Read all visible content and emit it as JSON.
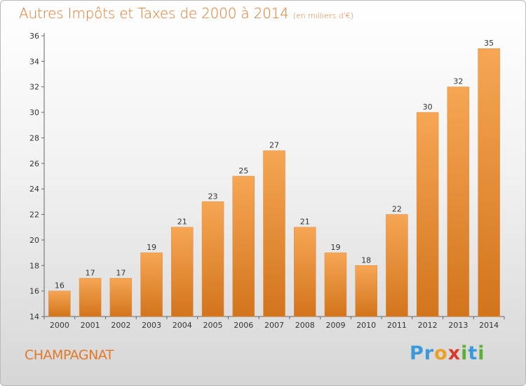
{
  "chart_data": {
    "type": "bar",
    "title": "Autres Impôts et Taxes de 2000 à 2014",
    "unit_note": "(en milliers d'€)",
    "categories": [
      "2000",
      "2001",
      "2002",
      "2003",
      "2004",
      "2005",
      "2006",
      "2007",
      "2008",
      "2009",
      "2010",
      "2011",
      "2012",
      "2013",
      "2014"
    ],
    "values": [
      16,
      17,
      17,
      19,
      21,
      23,
      25,
      27,
      21,
      19,
      18,
      22,
      30,
      32,
      35
    ],
    "ylim": [
      14,
      36
    ],
    "yticks": [
      14,
      16,
      18,
      20,
      22,
      24,
      26,
      28,
      30,
      32,
      34,
      36
    ],
    "grid": false,
    "bar_color": "#f0943f",
    "bar_color_dark": "#d2741c"
  },
  "commune": "CHAMPAGNAT",
  "brand": {
    "letters": [
      "P",
      "r",
      "o",
      "x",
      "i",
      "t",
      "i"
    ],
    "colors": [
      "#3a9ad9",
      "#3a9ad9",
      "#e8a126",
      "#d93a2b",
      "#58b135",
      "#3a9ad9",
      "#58b135"
    ]
  },
  "colors": {
    "accent": "#e2782a"
  }
}
